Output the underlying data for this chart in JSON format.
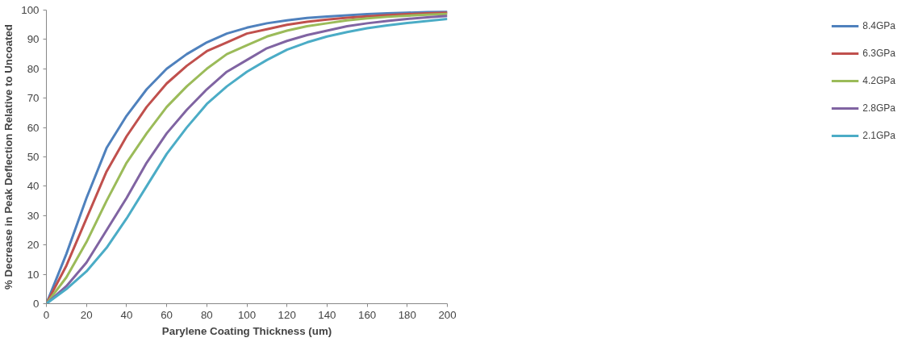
{
  "chart_data": {
    "type": "line",
    "xlabel": "Parylene Coating Thickness (um)",
    "ylabel": "% Decrease in Peak Deflection Relative to Uncoated",
    "x": [
      0,
      10,
      20,
      30,
      40,
      50,
      60,
      70,
      80,
      90,
      100,
      110,
      120,
      130,
      140,
      150,
      160,
      170,
      180,
      190,
      200
    ],
    "series": [
      {
        "name": "8.4GPa",
        "color": "#4f81bd",
        "values": [
          0,
          17,
          36,
          53,
          64,
          73,
          80,
          85,
          89,
          92,
          94,
          95.5,
          96.5,
          97.3,
          97.8,
          98.2,
          98.6,
          98.9,
          99.1,
          99.3,
          99.4
        ]
      },
      {
        "name": "6.3GPa",
        "color": "#c0504d",
        "values": [
          0,
          13,
          29,
          45,
          57,
          67,
          75,
          81,
          86,
          89,
          92,
          93.5,
          95,
          96,
          96.8,
          97.4,
          97.9,
          98.3,
          98.6,
          98.9,
          99.1
        ]
      },
      {
        "name": "4.2GPa",
        "color": "#9bbb59",
        "values": [
          0,
          9,
          21,
          35,
          48,
          58,
          67,
          74,
          80,
          85,
          88,
          91,
          93,
          94.5,
          95.5,
          96.5,
          97.2,
          97.7,
          98.1,
          98.4,
          98.7
        ]
      },
      {
        "name": "2.8GPa",
        "color": "#8064a2",
        "values": [
          0,
          6,
          14,
          25,
          36,
          48,
          58,
          66,
          73,
          79,
          83,
          87,
          89.5,
          91.5,
          93,
          94.5,
          95.5,
          96.3,
          97,
          97.5,
          98
        ]
      },
      {
        "name": "2.1GPa",
        "color": "#4bacc6",
        "values": [
          0,
          5,
          11,
          19,
          29,
          40,
          51,
          60,
          68,
          74,
          79,
          83,
          86.5,
          89,
          91,
          92.5,
          93.8,
          94.8,
          95.6,
          96.3,
          97
        ]
      }
    ],
    "xlim": [
      0,
      200
    ],
    "xticks": [
      0,
      20,
      40,
      60,
      80,
      100,
      120,
      140,
      160,
      180,
      200
    ],
    "ylim": [
      0,
      100
    ],
    "yticks": [
      0,
      10,
      20,
      30,
      40,
      50,
      60,
      70,
      80,
      90,
      100
    ],
    "grid": false,
    "legend": "right",
    "marker": "none",
    "line_style": "solid"
  }
}
